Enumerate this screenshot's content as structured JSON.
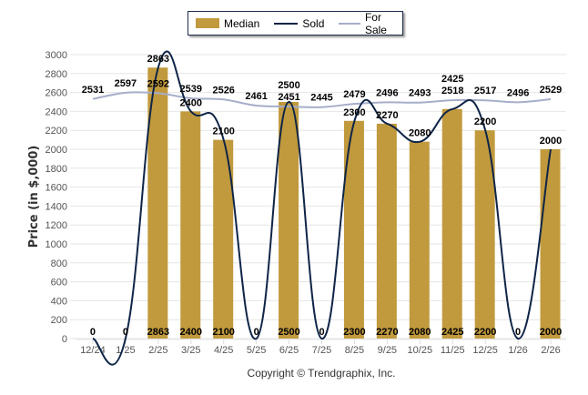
{
  "chart_data": {
    "type": "bar",
    "title": "",
    "xlabel": "",
    "ylabel": "Price (in $,000)",
    "ylim": [
      0,
      3000
    ],
    "yticks": [
      0,
      200,
      400,
      600,
      800,
      1000,
      1200,
      1400,
      1600,
      1800,
      2000,
      2200,
      2400,
      2600,
      2800,
      3000
    ],
    "grid": true,
    "legend_position": "top-center",
    "categories": [
      "12/24",
      "1/25",
      "2/25",
      "3/25",
      "4/25",
      "5/25",
      "6/25",
      "7/25",
      "8/25",
      "9/25",
      "10/25",
      "11/25",
      "12/25",
      "1/26",
      "2/26"
    ],
    "series": [
      {
        "name": "Median",
        "kind": "bar",
        "color": "#c19a3e",
        "values": [
          0,
          0,
          2863,
          2400,
          2100,
          0,
          2500,
          0,
          2300,
          2270,
          2080,
          2425,
          2200,
          0,
          2000
        ]
      },
      {
        "name": "Sold",
        "kind": "line",
        "color": "#0f2547",
        "values": [
          0,
          0,
          2863,
          2400,
          2100,
          0,
          2500,
          0,
          2300,
          2270,
          2080,
          2425,
          2200,
          0,
          2000
        ]
      },
      {
        "name": "For Sale",
        "kind": "line",
        "color": "#a6aec9",
        "values": [
          2531,
          2597,
          2592,
          2539,
          2526,
          2461,
          2451,
          2445,
          2479,
          2496,
          2493,
          2518,
          2517,
          2496,
          2529
        ]
      }
    ]
  },
  "legend": {
    "median": "Median",
    "sold": "Sold",
    "for_sale": "For Sale"
  },
  "footer": {
    "copyright": "Copyright © Trendgraphix, Inc."
  }
}
